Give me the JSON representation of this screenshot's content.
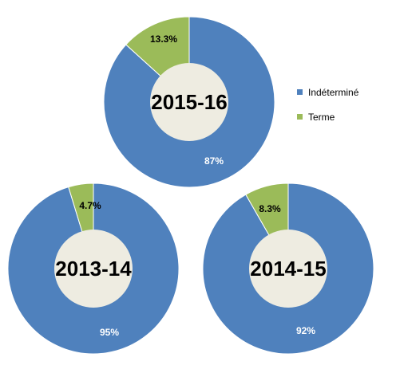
{
  "chart_data": [
    {
      "type": "pie",
      "title": "2015-16",
      "categories": [
        "Indéterminé",
        "Terme"
      ],
      "values": [
        87,
        13.3
      ],
      "labels": [
        "87%",
        "13.3%"
      ],
      "colors": [
        "#4F81BD",
        "#9BBB59"
      ],
      "hole_color": "#EEECE1"
    },
    {
      "type": "pie",
      "title": "2013-14",
      "categories": [
        "Indéterminé",
        "Terme"
      ],
      "values": [
        95,
        4.7
      ],
      "labels": [
        "95%",
        "4.7%"
      ],
      "colors": [
        "#4F81BD",
        "#9BBB59"
      ],
      "hole_color": "#EEECE1"
    },
    {
      "type": "pie",
      "title": "2014-15",
      "categories": [
        "Indéterminé",
        "Terme"
      ],
      "values": [
        92,
        8.3
      ],
      "labels": [
        "92%",
        "8.3%"
      ],
      "colors": [
        "#4F81BD",
        "#9BBB59"
      ],
      "hole_color": "#EEECE1"
    }
  ],
  "legend": {
    "placement": "right",
    "items": [
      {
        "label": "Indéterminé",
        "color": "#4F81BD"
      },
      {
        "label": "Terme",
        "color": "#9BBB59"
      }
    ]
  }
}
